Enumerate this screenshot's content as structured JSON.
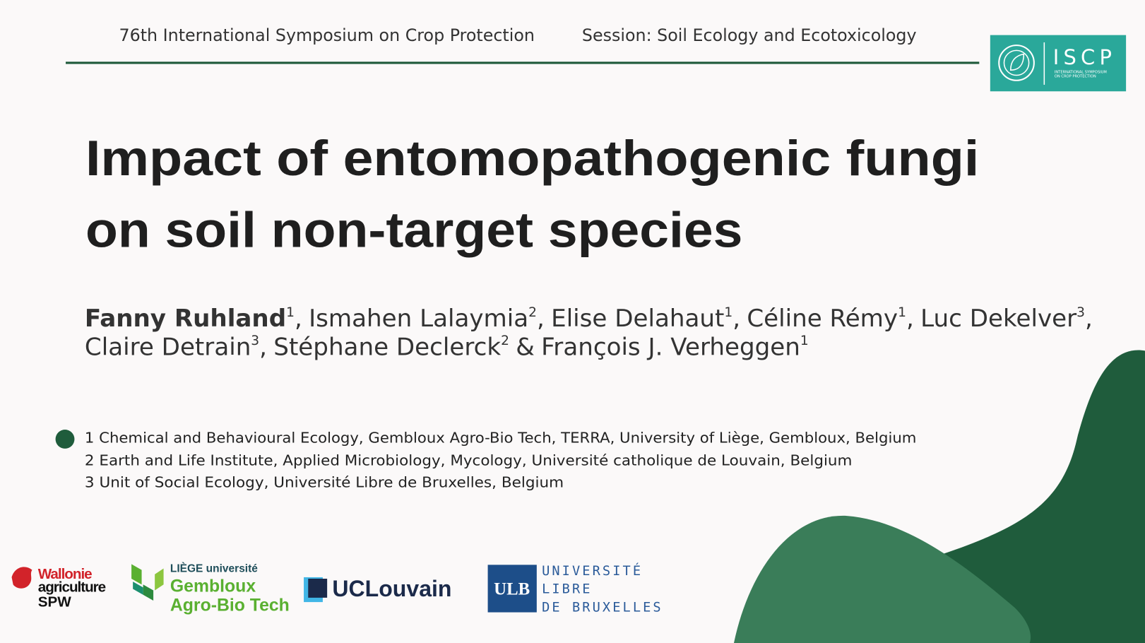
{
  "header": {
    "symposium": "76th International Symposium on Crop Protection",
    "session": "Session: Soil Ecology and Ecotoxicology"
  },
  "iscp_logo": {
    "name": "ISCP",
    "line1": "INTERNATIONAL SYMPOSIUM",
    "line2": "ON CROP PROTECTION"
  },
  "title": {
    "lines": [
      "Impact of entomopathogenic fungi",
      "on soil non-target species"
    ]
  },
  "author_lines": [
    [
      {
        "name": "Fanny Ruhland",
        "aff": "1",
        "after": ","
      },
      {
        "name": "Ismahen Lalaymia",
        "aff": "2",
        "after": ","
      },
      {
        "name": "Elise Delahaut",
        "aff": "1",
        "after": ","
      },
      {
        "name": "Céline Rémy",
        "aff": "1",
        "after": ","
      },
      {
        "name": "Luc Dekelver",
        "aff": "3",
        "after": ","
      }
    ],
    [
      {
        "name": "Claire Detrain",
        "aff": "3",
        "after": ","
      },
      {
        "name": "Stéphane Declerck",
        "aff": "2",
        "after": "&"
      },
      {
        "name": "François J. Verheggen",
        "aff": "1"
      }
    ]
  ],
  "affiliations": [
    "1 Chemical and Behavioural Ecology, Gembloux Agro-Bio Tech, TERRA, University of Liège, Gembloux, Belgium",
    "2 Earth and Life Institute, Applied Microbiology, Mycology, Université catholique de Louvain, Belgium",
    "3 Unit of Social Ecology, Université Libre de Bruxelles, Belgium"
  ],
  "logos": {
    "wallonie": [
      "Wallonie",
      "agriculture",
      "SPW"
    ],
    "liege": [
      "LIÈGE université",
      "Gembloux",
      "Agro-Bio Tech"
    ],
    "uclouvain": "UCLouvain",
    "ulb": {
      "mark": "ULB",
      "lines": [
        "UNIVERSITÉ",
        "LIBRE",
        "DE BRUXELLES"
      ]
    }
  }
}
